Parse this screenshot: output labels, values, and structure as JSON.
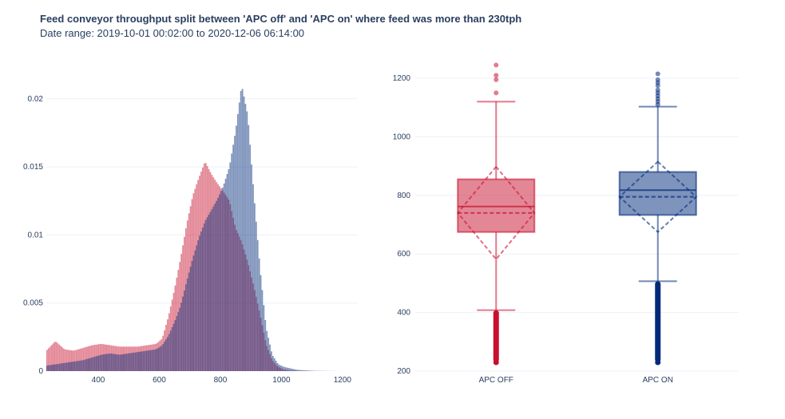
{
  "header": {
    "title": "Feed conveyor throughput split between 'APC off' and 'APC on' where feed was more than 230tph",
    "subtitle": "Date range: 2019-10-01 00:02:00 to 2020-12-06 06:14:00"
  },
  "colors": {
    "apc_off": "#c8102e",
    "apc_on": "#002a7a",
    "overlap": "#6b4f7f",
    "grid": "#ebf0f8",
    "axis_text": "#2a3f5f"
  },
  "chart_data": [
    {
      "type": "histogram",
      "histnorm": "probability",
      "opacity": 0.5,
      "xlim": [
        230,
        1250
      ],
      "ylim": [
        0,
        0.0228
      ],
      "xticks": [
        400,
        600,
        800,
        1000,
        1200
      ],
      "yticks": [
        0,
        0.005,
        0.01,
        0.015,
        0.02
      ],
      "ytick_labels": [
        "0",
        "0.005",
        "0.01",
        "0.015",
        "0.02"
      ],
      "series": [
        {
          "key": "apc_off",
          "x": [
            230,
            260,
            290,
            320,
            350,
            380,
            410,
            440,
            470,
            500,
            530,
            560,
            590,
            610,
            630,
            650,
            670,
            690,
            710,
            730,
            750,
            770,
            790,
            810,
            830,
            850,
            870,
            890,
            910,
            930,
            950,
            970,
            990,
            1010,
            1030,
            1050,
            1080,
            1110,
            1150,
            1200,
            1250
          ],
          "y": [
            0.0015,
            0.0022,
            0.0016,
            0.0015,
            0.0017,
            0.0019,
            0.002,
            0.0019,
            0.0018,
            0.0018,
            0.0018,
            0.0019,
            0.002,
            0.0024,
            0.004,
            0.006,
            0.0083,
            0.0108,
            0.0129,
            0.0142,
            0.0154,
            0.0145,
            0.0138,
            0.0132,
            0.0125,
            0.0105,
            0.0095,
            0.008,
            0.0062,
            0.0042,
            0.002,
            0.0008,
            0.0003,
            0.0001,
            5e-05,
            2e-05,
            1e-05,
            0,
            0,
            0,
            0
          ]
        },
        {
          "key": "apc_on",
          "x": [
            230,
            260,
            290,
            320,
            350,
            380,
            410,
            440,
            470,
            500,
            530,
            560,
            590,
            610,
            630,
            650,
            670,
            690,
            710,
            730,
            750,
            770,
            790,
            810,
            830,
            850,
            870,
            890,
            910,
            930,
            950,
            970,
            990,
            1010,
            1030,
            1050,
            1080,
            1110,
            1150,
            1200,
            1250
          ],
          "y": [
            0.0004,
            0.0005,
            0.0006,
            0.0007,
            0.0008,
            0.001,
            0.0012,
            0.0013,
            0.0012,
            0.0013,
            0.0014,
            0.0015,
            0.0016,
            0.0019,
            0.0026,
            0.0036,
            0.0048,
            0.0066,
            0.0083,
            0.0098,
            0.011,
            0.0118,
            0.0126,
            0.0136,
            0.015,
            0.0176,
            0.021,
            0.0188,
            0.013,
            0.0076,
            0.0032,
            0.0012,
            0.0005,
            0.0003,
            0.0002,
            0.0001,
            5e-05,
            2e-05,
            1e-05,
            0,
            0
          ]
        }
      ]
    },
    {
      "type": "box",
      "ylim": [
        200,
        1260
      ],
      "yticks": [
        200,
        400,
        600,
        800,
        1000,
        1200
      ],
      "categories": [
        "APC OFF",
        "APC ON"
      ],
      "boxes": [
        {
          "key": "apc_off",
          "label": "APC OFF",
          "q1": 675,
          "median": 762,
          "q3": 855,
          "lower_fence": 408,
          "upper_fence": 1120,
          "mean": 740,
          "sd": 158,
          "outliers_high": [
            1150,
            1195,
            1210,
            1245
          ],
          "outliers_low_range": [
            230,
            408
          ]
        },
        {
          "key": "apc_on",
          "label": "APC ON",
          "q1": 733,
          "median": 818,
          "q3": 880,
          "lower_fence": 507,
          "upper_fence": 1103,
          "mean": 795,
          "sd": 120,
          "outliers_high": [
            1110,
            1120,
            1130,
            1140,
            1150,
            1160,
            1175,
            1185,
            1195,
            1215
          ],
          "outliers_low_range": [
            230,
            507
          ]
        }
      ]
    }
  ]
}
